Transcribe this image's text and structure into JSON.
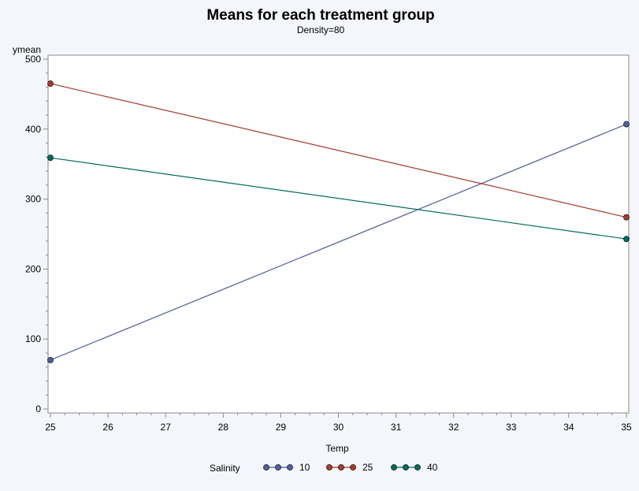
{
  "chart_data": {
    "type": "line",
    "title": "Means for each treatment group",
    "subtitle": "Density=80",
    "xlabel": "Temp",
    "ylabel": "ymean",
    "xlim": [
      25,
      35
    ],
    "ylim": [
      0,
      500
    ],
    "x_ticks": [
      25,
      26,
      27,
      28,
      29,
      30,
      31,
      32,
      33,
      34,
      35
    ],
    "y_ticks": [
      0,
      100,
      200,
      300,
      400,
      500
    ],
    "grid": false,
    "legend": {
      "title": "Salinity",
      "placement": "bottom"
    },
    "series": [
      {
        "name": "10",
        "color": "#4F5F9E",
        "x": [
          25,
          35
        ],
        "y": [
          70,
          407
        ]
      },
      {
        "name": "25",
        "color": "#A53A2E",
        "x": [
          25,
          35
        ],
        "y": [
          465,
          274
        ]
      },
      {
        "name": "40",
        "color": "#046B5E",
        "x": [
          25,
          35
        ],
        "y": [
          359,
          243
        ]
      }
    ]
  }
}
